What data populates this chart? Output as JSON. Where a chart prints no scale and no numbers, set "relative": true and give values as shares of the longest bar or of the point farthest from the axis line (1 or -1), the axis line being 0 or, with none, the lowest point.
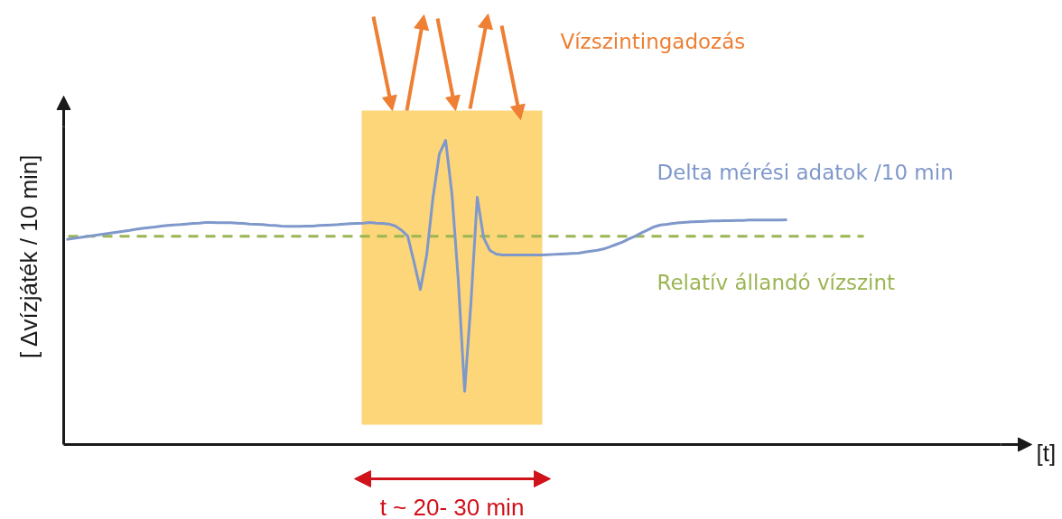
{
  "chart_data": {
    "type": "line",
    "relative": true,
    "categories": [
      null,
      null,
      null,
      null,
      null,
      null,
      null,
      null,
      null,
      null,
      null,
      null,
      null,
      null,
      null,
      null,
      null,
      null,
      null,
      null,
      null,
      null,
      null,
      null,
      null,
      null,
      null,
      null,
      null,
      null,
      null,
      null,
      null,
      null,
      null,
      null,
      null,
      null,
      null,
      null,
      null,
      null,
      null,
      null,
      null,
      null,
      null,
      null,
      null,
      null,
      null,
      null,
      null,
      null,
      null,
      null,
      null,
      null,
      null,
      null,
      null,
      null,
      null,
      null,
      null,
      null,
      null,
      null,
      null,
      null,
      null,
      null,
      null,
      null,
      null,
      null,
      null,
      null,
      null,
      null,
      null,
      null,
      null,
      null,
      null,
      null,
      null,
      null,
      null,
      null,
      null,
      null,
      null,
      null,
      null,
      null,
      null,
      null,
      null,
      null,
      null,
      null,
      null,
      null,
      null,
      null,
      null,
      null,
      null,
      null,
      null,
      null,
      null,
      null,
      null
    ],
    "series": [
      {
        "name": "Delta mérési adatok /10 min",
        "color": "#7f98cb",
        "values": [
          0.674,
          0.677,
          0.68,
          0.683,
          0.686,
          0.689,
          0.692,
          0.695,
          0.698,
          0.701,
          0.704,
          0.708,
          0.711,
          0.713,
          0.715,
          0.718,
          0.72,
          0.722,
          0.723,
          0.725,
          0.727,
          0.728,
          0.73,
          0.73,
          0.729,
          0.729,
          0.729,
          0.728,
          0.727,
          0.725,
          0.724,
          0.723,
          0.721,
          0.72,
          0.718,
          0.717,
          0.717,
          0.717,
          0.718,
          0.718,
          0.72,
          0.721,
          0.722,
          0.723,
          0.725,
          0.726,
          0.727,
          0.728,
          0.73,
          0.728,
          0.727,
          0.725,
          0.719,
          0.705,
          0.685,
          0.599,
          0.51,
          0.623,
          0.813,
          0.955,
          1,
          0.822,
          0.54,
          0.175,
          0.466,
          0.813,
          0.68,
          0.638,
          0.626,
          0.623,
          0.623,
          0.623,
          0.623,
          0.623,
          0.623,
          0.623,
          0.624,
          0.625,
          0.626,
          0.627,
          0.628,
          0.629,
          0.633,
          0.636,
          0.639,
          0.643,
          0.65,
          0.658,
          0.666,
          0.676,
          0.685,
          0.696,
          0.706,
          0.716,
          0.722,
          0.724,
          0.727,
          0.729,
          0.731,
          0.732,
          0.733,
          0.734,
          0.735,
          0.735,
          0.736,
          0.736,
          0.737,
          0.737,
          0.738,
          0.738,
          0.738,
          0.738,
          0.738,
          0.738,
          0.739
        ]
      }
    ],
    "ylabel": "[ Δvízjáték / 10 min]",
    "annotations": [
      "Vízszintingadozás",
      "[t]",
      "t ~ 20- 30 min"
    ],
    "ref_lines": [
      {
        "axis": "y",
        "value": 0.685,
        "label": "Relatív állandó vízszint",
        "color": "#9cb553",
        "line_style": "dashed"
      }
    ]
  }
}
